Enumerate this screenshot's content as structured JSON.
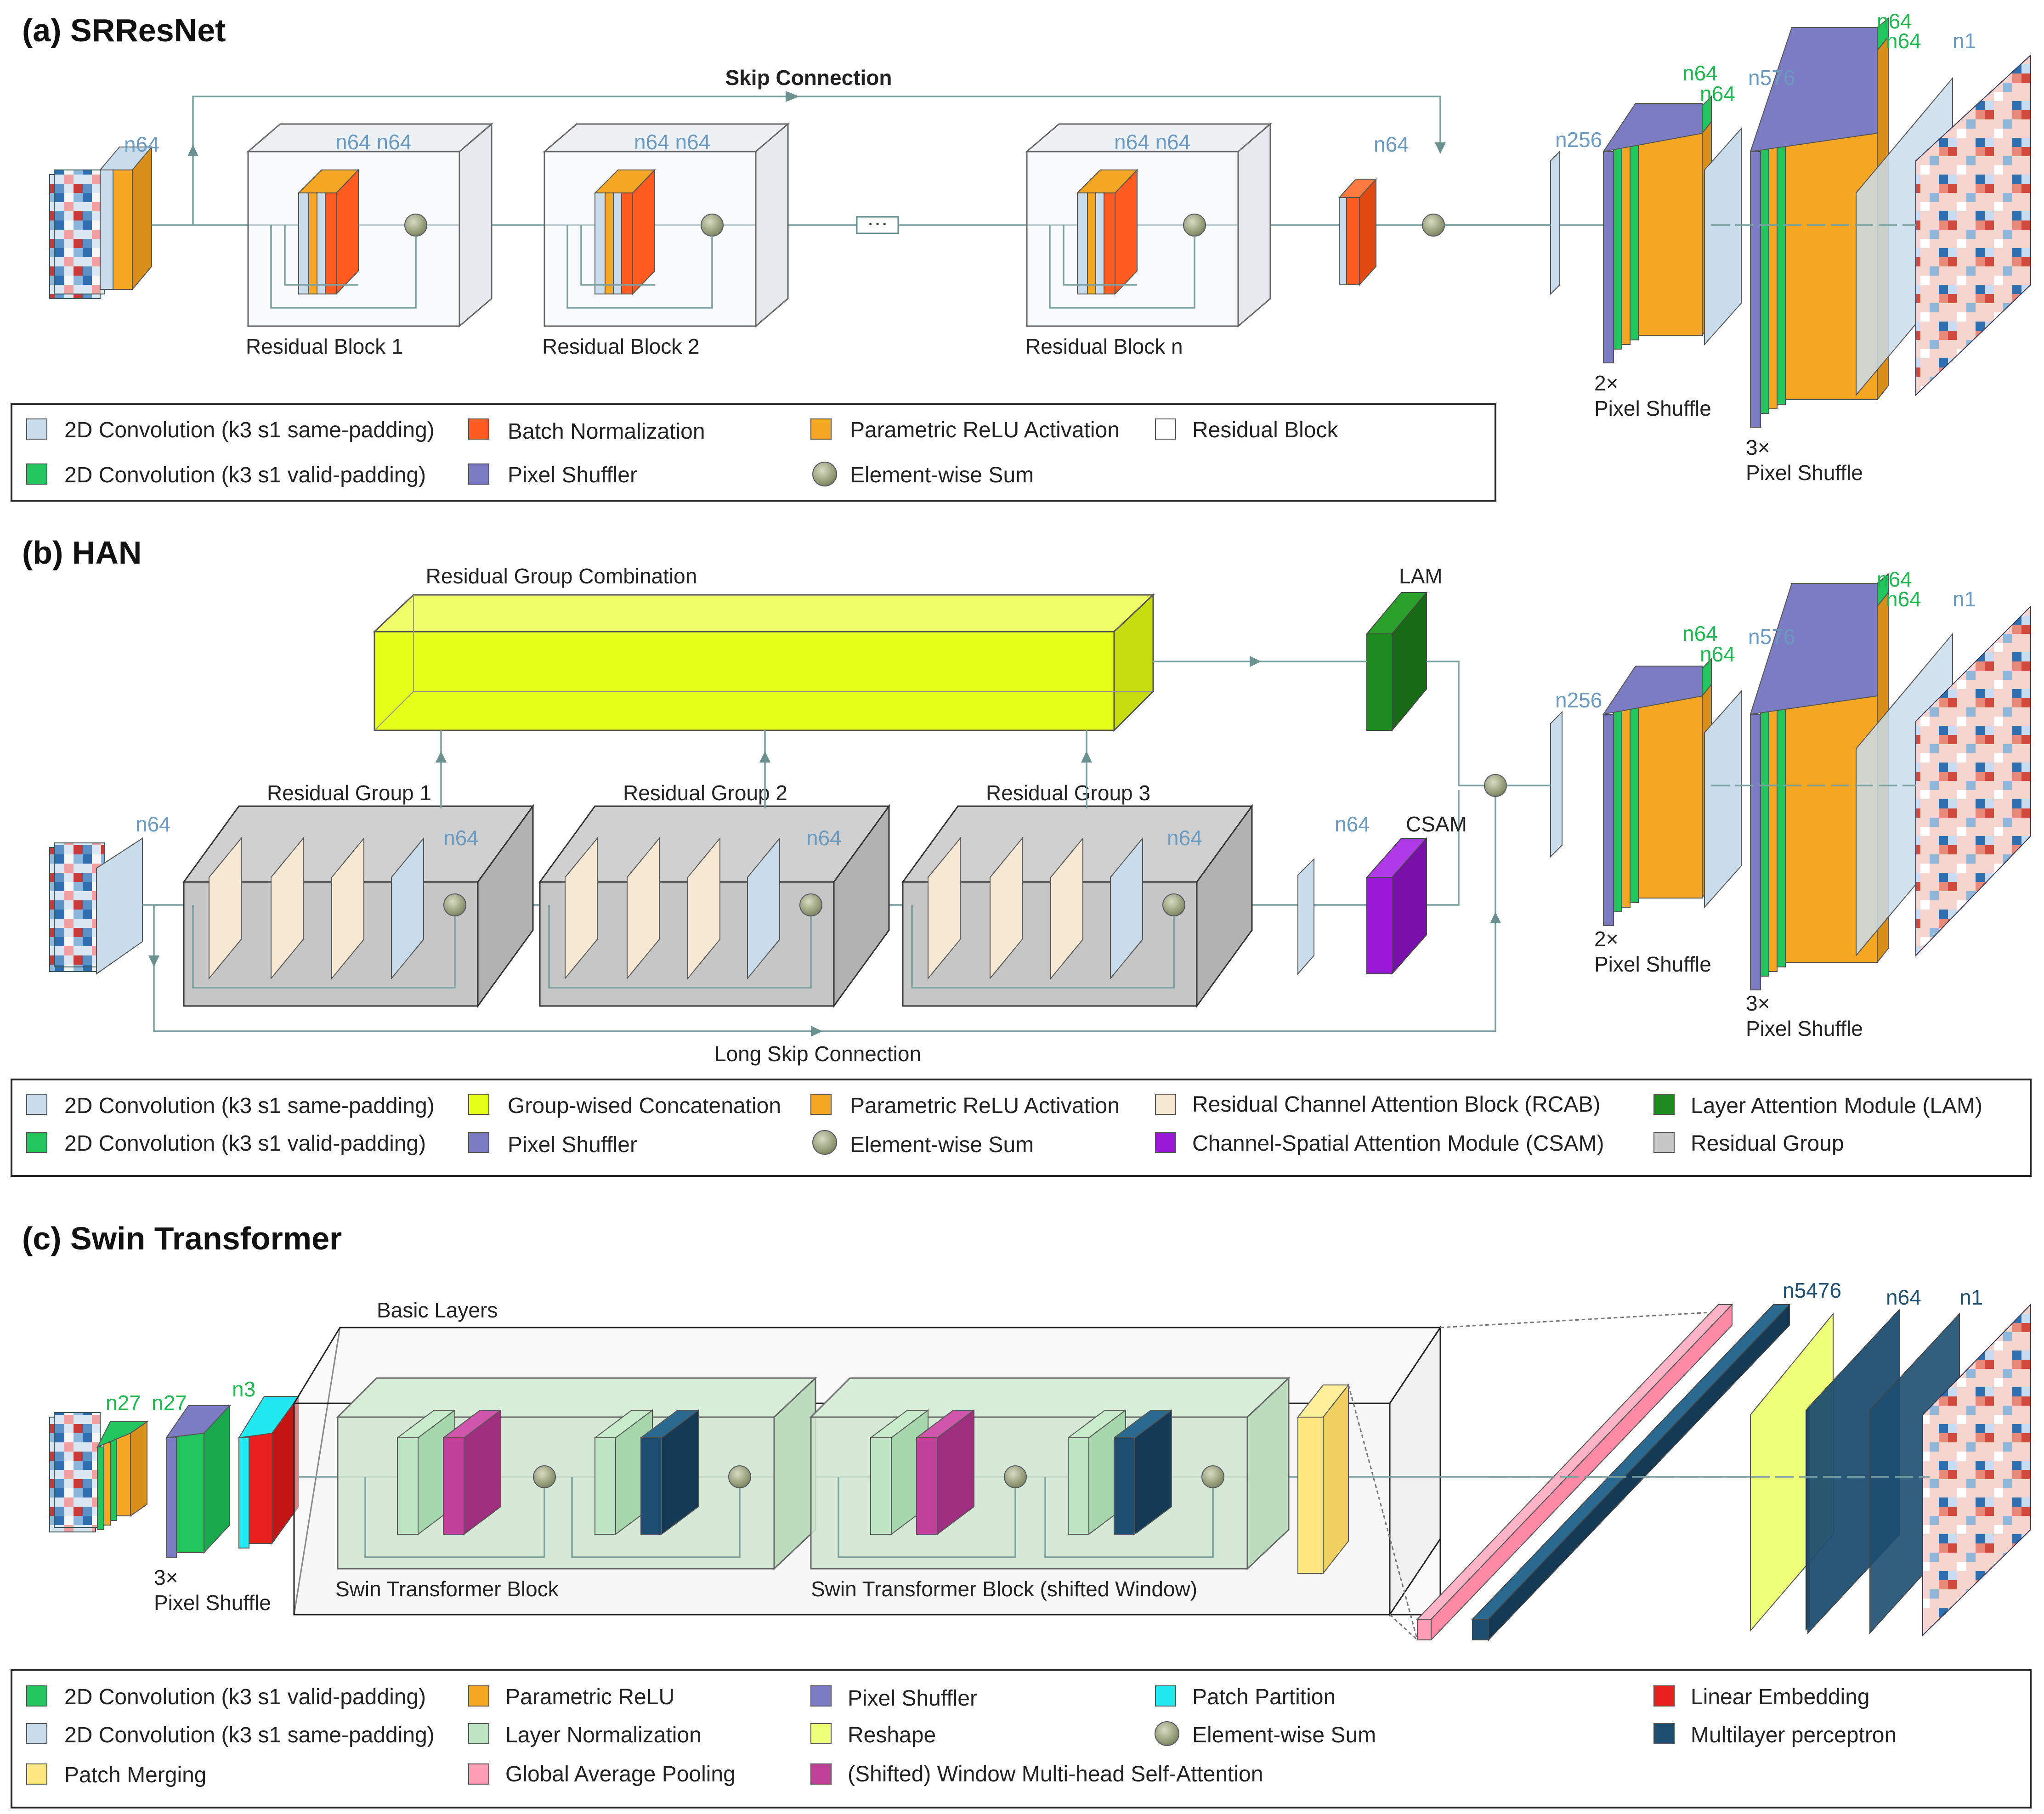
{
  "panels": {
    "a": {
      "title": "(a) SRResNet",
      "skip_label": "Skip Connection",
      "blocks": [
        "Residual Block 1",
        "Residual Block 2",
        "Residual Block n"
      ],
      "ellipsis": "···",
      "channels": {
        "input": "n64",
        "block": "n64 n64",
        "after": "n64",
        "up_pre": "n256",
        "up_mid_a": "n64",
        "up_mid_b": "n64",
        "up_post": "n576",
        "up_top_a": "n64",
        "up_top_b": "n64",
        "out": "n1"
      },
      "shuffle2": [
        "2×",
        "Pixel Shuffle"
      ],
      "shuffle3": [
        "3×",
        "Pixel Shuffle"
      ],
      "legend": [
        {
          "label": "2D Convolution (k3 s1 same-padding)",
          "color": "#c9dceb"
        },
        {
          "label": "Batch Normalization",
          "color": "#ff5a1f"
        },
        {
          "label": "Parametric ReLU Activation",
          "color": "#f5a623"
        },
        {
          "label": "Residual Block",
          "color": "#ffffff"
        },
        {
          "label": "2D Convolution (k3 s1 valid-padding)",
          "color": "#22c55e"
        },
        {
          "label": "Pixel Shuffler",
          "color": "#7c7cc4"
        },
        {
          "label": "Element-wise Sum",
          "color": "#9aa27a"
        }
      ]
    },
    "b": {
      "title": "(b) HAN",
      "rgc_label": "Residual Group Combination",
      "lam_label": "LAM",
      "csam_label": "CSAM",
      "groups": [
        "Residual Group 1",
        "Residual Group 2",
        "Residual Group 3"
      ],
      "long_skip": "Long Skip Connection",
      "channels": {
        "input": "n64",
        "group": "n64",
        "after": "n64",
        "up_pre": "n256",
        "up_mid_a": "n64",
        "up_mid_b": "n64",
        "up_post": "n576",
        "up_top_a": "n64",
        "up_top_b": "n64",
        "out": "n1"
      },
      "shuffle2": [
        "2×",
        "Pixel Shuffle"
      ],
      "shuffle3": [
        "3×",
        "Pixel Shuffle"
      ],
      "legend": [
        {
          "label": "2D Convolution (k3 s1 same-padding)",
          "color": "#c9dceb"
        },
        {
          "label": "Group-wised Concatenation",
          "color": "#e6ff19"
        },
        {
          "label": "Parametric ReLU Activation",
          "color": "#f5a623"
        },
        {
          "label": "Residual Channel Attention Block (RCAB)",
          "color": "#f7e8d4"
        },
        {
          "label": "Layer Attention Module (LAM)",
          "color": "#1f8a1f"
        },
        {
          "label": "2D Convolution (k3 s1 valid-padding)",
          "color": "#22c55e"
        },
        {
          "label": "Pixel Shuffler",
          "color": "#7c7cc4"
        },
        {
          "label": "Element-wise Sum",
          "color": "#9aa27a"
        },
        {
          "label": "Channel-Spatial Attention Module (CSAM)",
          "color": "#9b19d6"
        },
        {
          "label": "Residual Group",
          "color": "#c6c6c6"
        }
      ]
    },
    "c": {
      "title": "(c) Swin Transformer",
      "basic_layers": "Basic Layers",
      "block1": "Swin Transformer Block",
      "block2": "Swin Transformer Block (shifted Window)",
      "channels": {
        "in_a": "n27",
        "in_b": "n27",
        "in_c": "n3",
        "mlp1": "n5476",
        "mlp2": "n64",
        "out": "n1"
      },
      "shuffle3": [
        "3×",
        "Pixel Shuffle"
      ],
      "legend": [
        {
          "label": "2D Convolution (k3 s1 valid-padding)",
          "color": "#22c55e"
        },
        {
          "label": "Parametric ReLU",
          "color": "#f5a623"
        },
        {
          "label": "Pixel Shuffler",
          "color": "#7c7cc4"
        },
        {
          "label": "Patch Partition",
          "color": "#22e8f0"
        },
        {
          "label": "Linear Embedding",
          "color": "#e82020"
        },
        {
          "label": "2D Convolution (k3 s1 same-padding)",
          "color": "#c9dceb"
        },
        {
          "label": "Layer Normalization",
          "color": "#bfe6c4"
        },
        {
          "label": "Reshape",
          "color": "#eeff7a"
        },
        {
          "label": "Element-wise Sum",
          "color": "#9aa27a"
        },
        {
          "label": "Multilayer perceptron",
          "color": "#1d4e70"
        },
        {
          "label": "Patch Merging",
          "color": "#ffe680"
        },
        {
          "label": "Global Average Pooling",
          "color": "#ff9bb3"
        },
        {
          "label": "(Shifted) Window Multi-head Self-Attention",
          "color": "#c0409a"
        }
      ]
    }
  }
}
